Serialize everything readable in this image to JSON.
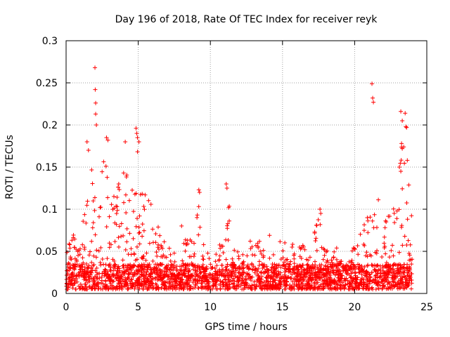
{
  "chart_data": {
    "type": "scatter",
    "title": "Day 196 of 2018, Rate Of TEC Index for receiver reyk",
    "xlabel": "GPS time / hours",
    "ylabel": "ROTI / TECUs",
    "xlim": [
      0,
      25
    ],
    "ylim": [
      0,
      0.3
    ],
    "x_ticks": [
      "0",
      "5",
      "10",
      "15",
      "20",
      "25"
    ],
    "y_ticks": [
      "0",
      "0.05",
      "0.1",
      "0.15",
      "0.2",
      "0.25",
      "0.3"
    ],
    "grid": true,
    "marker": "+",
    "marker_color": "#ff0000",
    "series": [
      {
        "name": "ROTI",
        "envelope_x": [
          0,
          0.3,
          1,
          1.5,
          1.8,
          2.0,
          2.2,
          2.7,
          3.0,
          3.4,
          3.8,
          4.2,
          4.6,
          4.9,
          5.2,
          5.6,
          6.0,
          6.5,
          7.0,
          7.5,
          8.0,
          8.4,
          8.8,
          9.2,
          9.6,
          10.0,
          10.5,
          11.0,
          11.2,
          11.6,
          12.0,
          13.0,
          14.0,
          15.0,
          16.0,
          17.0,
          17.6,
          18.0,
          19.0,
          20.0,
          20.5,
          21.0,
          21.3,
          21.7,
          22.0,
          22.5,
          23.0,
          23.3,
          23.6,
          24.0
        ],
        "envelope_y": [
          0.045,
          0.07,
          0.06,
          0.12,
          0.18,
          0.12,
          0.13,
          0.16,
          0.18,
          0.14,
          0.13,
          0.17,
          0.12,
          0.18,
          0.14,
          0.11,
          0.1,
          0.07,
          0.05,
          0.05,
          0.08,
          0.07,
          0.06,
          0.12,
          0.06,
          0.045,
          0.05,
          0.06,
          0.13,
          0.06,
          0.05,
          0.06,
          0.055,
          0.06,
          0.055,
          0.05,
          0.1,
          0.05,
          0.05,
          0.05,
          0.07,
          0.1,
          0.11,
          0.12,
          0.08,
          0.1,
          0.14,
          0.18,
          0.15,
          0.09
        ],
        "spikes": [
          [
            2.0,
            0.268
          ],
          [
            2.02,
            0.242
          ],
          [
            2.05,
            0.226
          ],
          [
            2.05,
            0.213
          ],
          [
            2.1,
            0.2
          ],
          [
            1.45,
            0.18
          ],
          [
            1.55,
            0.17
          ],
          [
            2.8,
            0.185
          ],
          [
            2.9,
            0.182
          ],
          [
            4.1,
            0.18
          ],
          [
            4.85,
            0.196
          ],
          [
            4.9,
            0.19
          ],
          [
            4.95,
            0.185
          ],
          [
            5.05,
            0.18
          ],
          [
            11.1,
            0.13
          ],
          [
            11.15,
            0.125
          ],
          [
            9.2,
            0.123
          ],
          [
            9.25,
            0.12
          ],
          [
            17.6,
            0.1
          ],
          [
            17.65,
            0.095
          ],
          [
            14.1,
            0.069
          ],
          [
            21.2,
            0.249
          ],
          [
            21.25,
            0.232
          ],
          [
            21.3,
            0.227
          ],
          [
            23.2,
            0.216
          ],
          [
            23.5,
            0.214
          ],
          [
            23.3,
            0.205
          ],
          [
            23.55,
            0.198
          ],
          [
            23.6,
            0.197
          ],
          [
            23.25,
            0.178
          ],
          [
            23.3,
            0.172
          ],
          [
            23.65,
            0.158
          ],
          [
            23.1,
            0.15
          ],
          [
            23.2,
            0.145
          ]
        ]
      }
    ]
  }
}
